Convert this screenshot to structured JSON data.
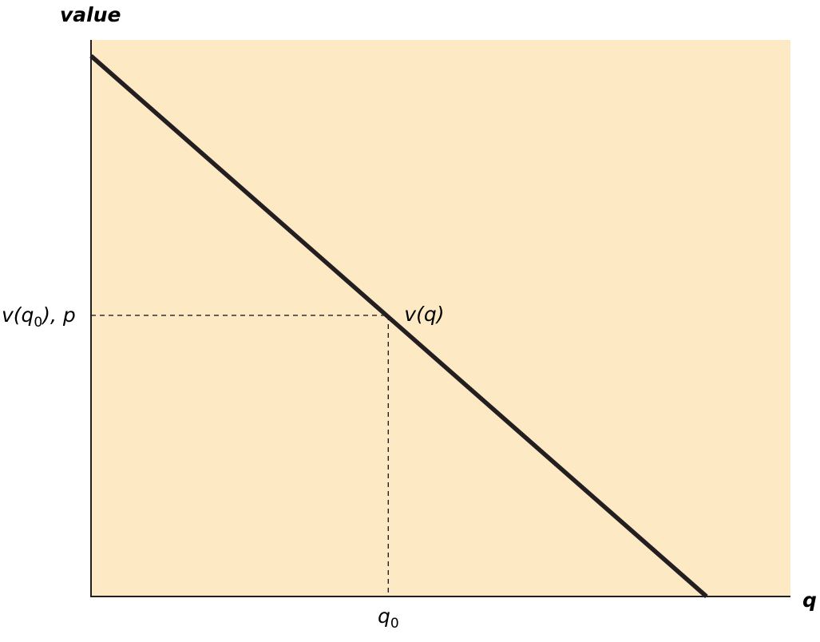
{
  "chart_data": {
    "type": "line",
    "title": "",
    "ylabel": "value",
    "xlabel": "q",
    "xlim": [
      0,
      1
    ],
    "ylim": [
      0,
      1
    ],
    "grid": false,
    "legend": "none",
    "series": [
      {
        "name": "v(q)",
        "x": [
          0,
          0.88
        ],
        "y": [
          1,
          0
        ]
      }
    ],
    "annotations": {
      "curve_label": {
        "text": "v(q)",
        "x": 0.425,
        "y": 0.52
      },
      "point": {
        "x": 0.425,
        "y": 0.52
      },
      "x_marker": {
        "symbol": "q",
        "subscript": "0"
      },
      "y_marker": {
        "prefix": "v(q",
        "subscript": "0",
        "suffix": "), p"
      }
    },
    "colors": {
      "plot_background": "#fde9c4",
      "line": "#231f20"
    }
  }
}
